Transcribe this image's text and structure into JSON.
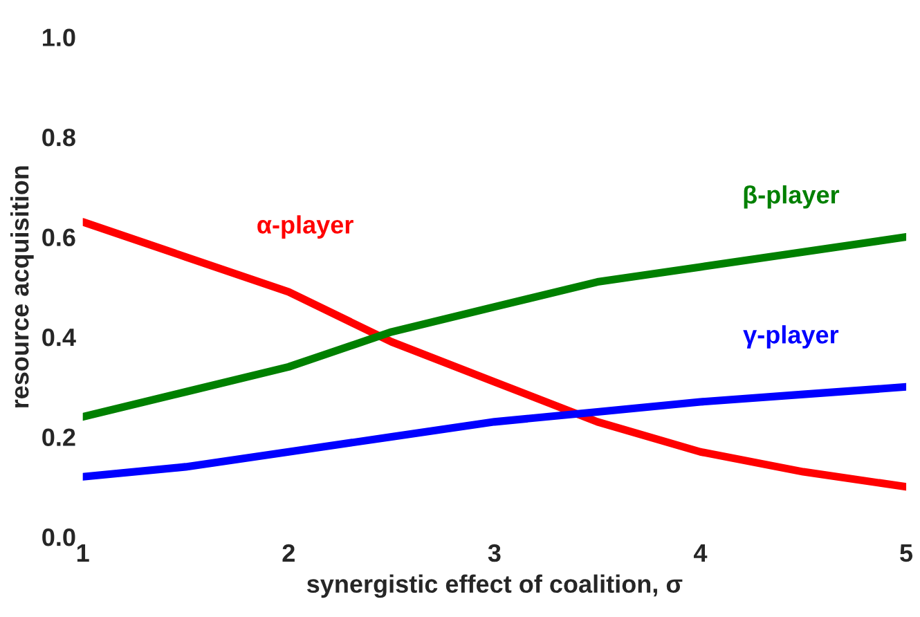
{
  "chart_data": {
    "type": "line",
    "xlabel": "synergistic effect of coalition, σ",
    "ylabel": "resource acquisition",
    "x": [
      1,
      1.5,
      2,
      2.5,
      3,
      3.5,
      4,
      4.5,
      5
    ],
    "series": [
      {
        "name": "α-player",
        "color": "#ff0000",
        "values": [
          0.63,
          0.56,
          0.49,
          0.39,
          0.31,
          0.23,
          0.17,
          0.13,
          0.1
        ]
      },
      {
        "name": "β-player",
        "color": "#008000",
        "values": [
          0.24,
          0.29,
          0.34,
          0.41,
          0.46,
          0.51,
          0.54,
          0.57,
          0.6
        ]
      },
      {
        "name": "γ-player",
        "color": "#0000ff",
        "values": [
          0.12,
          0.14,
          0.17,
          0.2,
          0.23,
          0.25,
          0.27,
          0.285,
          0.3
        ]
      }
    ],
    "xlim": [
      1,
      5
    ],
    "xticks": [
      1,
      2,
      3,
      4,
      5
    ],
    "ylim": [
      0,
      1
    ],
    "yticks": [
      {
        "value": 0,
        "label": "0.0"
      },
      {
        "value": 0.2,
        "label": "0.2"
      },
      {
        "value": 0.4,
        "label": "0.4"
      },
      {
        "value": 0.6,
        "label": "0.6"
      },
      {
        "value": 0.8,
        "label": "0.8"
      },
      {
        "value": 1,
        "label": "1.0"
      }
    ],
    "grid": false,
    "legend": false,
    "marker": "none",
    "line_style": "solid"
  }
}
